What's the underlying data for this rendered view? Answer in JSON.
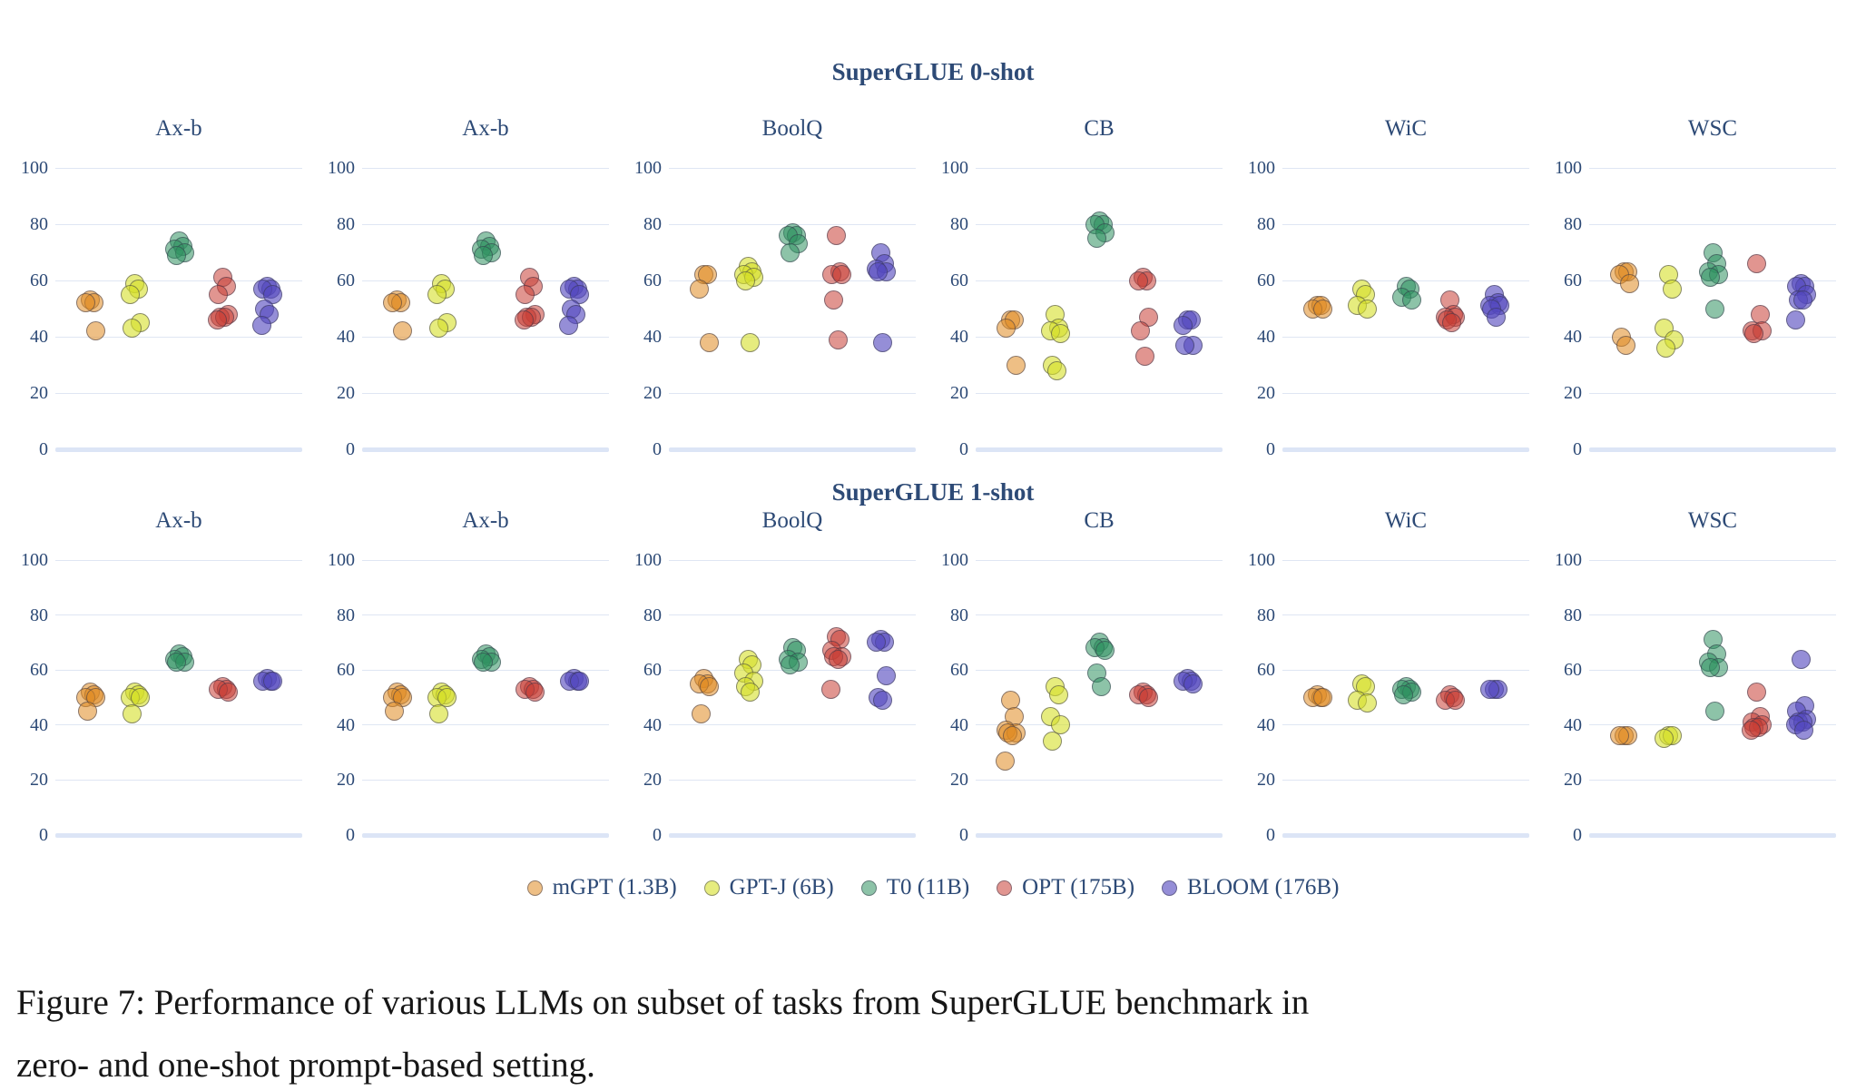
{
  "figure": {
    "caption_line1": "Figure 7: Performance of various LLMs on subset of tasks from SuperGLUE benchmark in",
    "caption_line2": "zero- and one-shot prompt-based setting."
  },
  "palette": {
    "text_navy": "#2d4a76",
    "grid_line": "#dfe6f3",
    "baseline": "#dce5f6",
    "caption_text": "#161616"
  },
  "legend": [
    {
      "label": "mGPT (1.3B)",
      "color": "#e08a21",
      "fill_alpha": 0.55
    },
    {
      "label": "GPT-J (6B)",
      "color": "#d5e028",
      "fill_alpha": 0.6
    },
    {
      "label": "T0 (11B)",
      "color": "#2f9261",
      "fill_alpha": 0.55
    },
    {
      "label": "OPT (175B)",
      "color": "#c83e34",
      "fill_alpha": 0.55
    },
    {
      "label": "BLOOM (176B)",
      "color": "#5449be",
      "fill_alpha": 0.62
    }
  ],
  "chart_data": {
    "type": "scatter",
    "ylim": [
      0,
      100
    ],
    "yticks": [
      100,
      80,
      60,
      40,
      20,
      0
    ],
    "grid": true,
    "legend_position": "bottom",
    "series_names": [
      "mGPT (1.3B)",
      "GPT-J (6B)",
      "T0 (11B)",
      "OPT (175B)",
      "BLOOM (176B)"
    ],
    "rows": [
      {
        "group_title": "SuperGLUE 0-shot",
        "subplots": [
          {
            "title": "Ax-b",
            "series": [
              [
                53,
                52,
                52,
                42
              ],
              [
                59,
                57,
                55,
                45,
                43
              ],
              [
                74,
                72,
                71,
                70,
                69
              ],
              [
                61,
                58,
                55,
                48,
                47,
                47,
                46
              ],
              [
                58,
                57,
                57,
                55,
                50,
                48,
                44
              ]
            ]
          },
          {
            "title": "Ax-b",
            "series": [
              [
                53,
                52,
                52,
                42
              ],
              [
                59,
                57,
                55,
                45,
                43
              ],
              [
                74,
                72,
                71,
                70,
                69
              ],
              [
                61,
                58,
                55,
                48,
                47,
                47,
                46
              ],
              [
                58,
                57,
                57,
                55,
                50,
                48,
                44
              ]
            ]
          },
          {
            "title": "BoolQ",
            "series": [
              [
                62,
                62,
                57,
                38
              ],
              [
                65,
                63,
                62,
                61,
                60,
                38
              ],
              [
                77,
                76,
                76,
                73,
                70
              ],
              [
                76,
                63,
                62,
                62,
                53,
                39
              ],
              [
                70,
                66,
                64,
                63,
                63,
                38
              ]
            ]
          },
          {
            "title": "CB",
            "series": [
              [
                46,
                46,
                43,
                30
              ],
              [
                48,
                43,
                42,
                41,
                30,
                28
              ],
              [
                81,
                80,
                80,
                77,
                75
              ],
              [
                61,
                60,
                60,
                47,
                42,
                33
              ],
              [
                46,
                46,
                44,
                37,
                37
              ]
            ]
          },
          {
            "title": "WiC",
            "series": [
              [
                51,
                51,
                50,
                50
              ],
              [
                57,
                55,
                51,
                50
              ],
              [
                58,
                57,
                54,
                53
              ],
              [
                53,
                48,
                47,
                47,
                46,
                45
              ],
              [
                55,
                52,
                51,
                51,
                50,
                47
              ]
            ]
          },
          {
            "title": "WSC",
            "series": [
              [
                63,
                63,
                62,
                59,
                40,
                37
              ],
              [
                62,
                57,
                43,
                39,
                36
              ],
              [
                70,
                66,
                63,
                62,
                61,
                50
              ],
              [
                66,
                48,
                42,
                42,
                41
              ],
              [
                59,
                58,
                58,
                55,
                53,
                53,
                46
              ]
            ]
          }
        ]
      },
      {
        "group_title": "SuperGLUE 1-shot",
        "subplots": [
          {
            "title": "Ax-b",
            "series": [
              [
                52,
                51,
                50,
                50,
                45
              ],
              [
                52,
                51,
                50,
                50,
                44
              ],
              [
                66,
                65,
                64,
                63,
                63
              ],
              [
                54,
                53,
                53,
                52
              ],
              [
                57,
                56,
                56,
                56
              ]
            ]
          },
          {
            "title": "Ax-b",
            "series": [
              [
                52,
                51,
                50,
                50,
                45
              ],
              [
                52,
                51,
                50,
                50,
                44
              ],
              [
                66,
                65,
                64,
                63,
                63
              ],
              [
                54,
                53,
                53,
                52
              ],
              [
                57,
                56,
                56,
                56
              ]
            ]
          },
          {
            "title": "BoolQ",
            "series": [
              [
                57,
                55,
                55,
                54,
                44
              ],
              [
                64,
                62,
                59,
                56,
                54,
                52
              ],
              [
                68,
                67,
                64,
                63,
                62
              ],
              [
                72,
                71,
                67,
                65,
                65,
                64,
                53
              ],
              [
                71,
                70,
                70,
                58,
                50,
                49
              ]
            ]
          },
          {
            "title": "CB",
            "series": [
              [
                49,
                43,
                38,
                37,
                37,
                36,
                27
              ],
              [
                54,
                51,
                43,
                40,
                34
              ],
              [
                70,
                68,
                68,
                67,
                59,
                54
              ],
              [
                52,
                51,
                51,
                50
              ],
              [
                57,
                56,
                56,
                55
              ]
            ]
          },
          {
            "title": "WiC",
            "series": [
              [
                51,
                50,
                50,
                50
              ],
              [
                55,
                54,
                49,
                48
              ],
              [
                54,
                53,
                53,
                52,
                51
              ],
              [
                51,
                50,
                49,
                49
              ],
              [
                53,
                53,
                53
              ]
            ]
          },
          {
            "title": "WSC",
            "series": [
              [
                36,
                36,
                36
              ],
              [
                36,
                36,
                35
              ],
              [
                71,
                66,
                63,
                61,
                61,
                45
              ],
              [
                52,
                43,
                41,
                40,
                39,
                39,
                38
              ],
              [
                64,
                47,
                45,
                42,
                41,
                41,
                40,
                38
              ]
            ]
          }
        ]
      }
    ]
  }
}
